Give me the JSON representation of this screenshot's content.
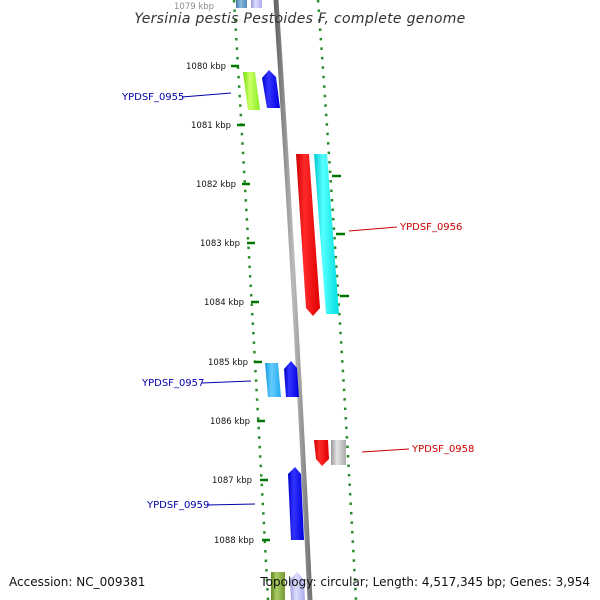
{
  "title": "Yersinia pestis Pestoides F, complete genome",
  "footer": {
    "accession": "Accession: NC_009381",
    "topology": "Topology: circular; Length: 4,517,345 bp; Genes: 3,954"
  },
  "ticks": [
    "1079 kbp",
    "1080 kbp",
    "1081 kbp",
    "1082 kbp",
    "1083 kbp",
    "1084 kbp",
    "1085 kbp",
    "1086 kbp",
    "1087 kbp",
    "1088 kbp"
  ],
  "gene_labels": [
    {
      "name": "YPDSF_0955",
      "strand": "forward",
      "color": "#0000aa"
    },
    {
      "name": "YPDSF_0956",
      "strand": "reverse",
      "color": "#cc0000"
    },
    {
      "name": "YPDSF_0957",
      "strand": "forward",
      "color": "#0000aa"
    },
    {
      "name": "YPDSF_0958",
      "strand": "reverse",
      "color": "#cc0000"
    },
    {
      "name": "YPDSF_0959",
      "strand": "forward",
      "color": "#0000aa"
    }
  ],
  "colors": {
    "backbone": "#888888",
    "tick": "#007700",
    "forward_gene": "#0000ff",
    "reverse_gene": "#ff0000",
    "cyan_gene": "#00e5e5",
    "light_blue_gene": "#33bbff",
    "green_gene": "#99ff33",
    "grey_gene": "#bbbbbb"
  }
}
